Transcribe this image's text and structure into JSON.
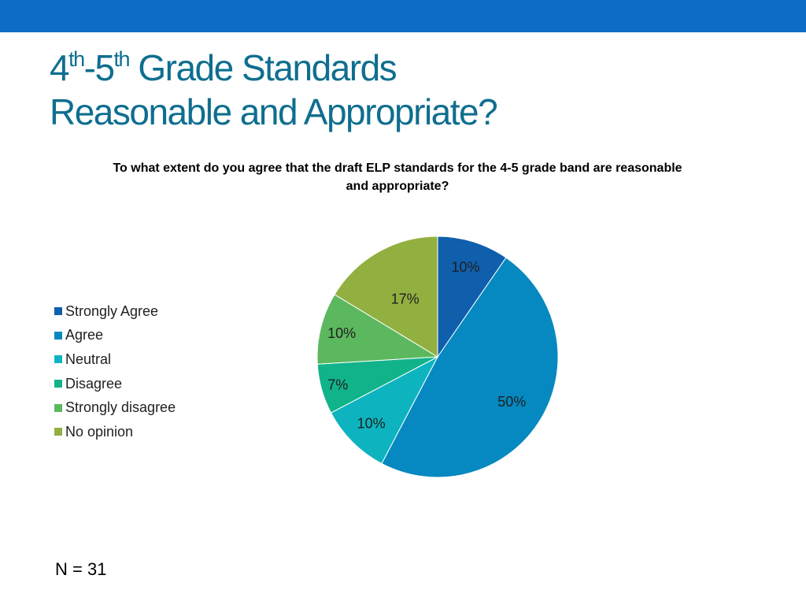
{
  "slide": {
    "title_part1": "4",
    "title_sup1": "th",
    "title_part2": "-5",
    "title_sup2": "th",
    "title_part3": " Grade Standards",
    "title_line2": "Reasonable and Appropriate?",
    "n_label": "N = 31"
  },
  "colors": {
    "top_bar": "#0d6cc4",
    "title": "#0f6e8f"
  },
  "chart_data": {
    "type": "pie",
    "title": "To what extent do you agree that the draft ELP standards for the 4-5 grade band are reasonable and appropriate?",
    "legend_position": "left",
    "categories": [
      "Strongly Agree",
      "Agree",
      "Neutral",
      "Disagree",
      "Strongly disagree",
      "No opinion"
    ],
    "values": [
      10,
      50,
      10,
      7,
      10,
      17
    ],
    "data_labels": [
      "10%",
      "50%",
      "10%",
      "7%",
      "10%",
      "17%"
    ],
    "colors": [
      "#0f5fad",
      "#0589c0",
      "#0db4bf",
      "#11b38a",
      "#5cb85f",
      "#92b040"
    ]
  }
}
